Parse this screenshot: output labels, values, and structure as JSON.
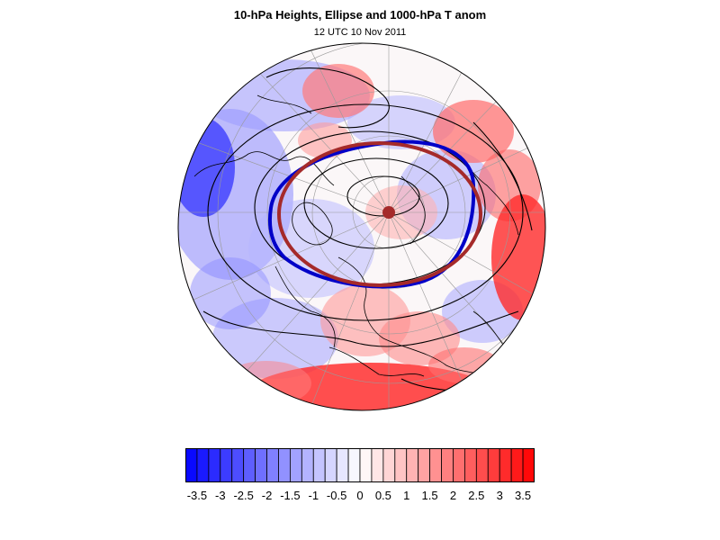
{
  "title": "10-hPa Heights, Ellipse and 1000-hPa T anom",
  "subtitle": "12 UTC 10 Nov 2011",
  "colors": {
    "cold": "#0000ff",
    "warm": "#ff0000",
    "ellipse": "#a52a2a",
    "vortex_edge": "#0000c8",
    "contour": "#000000",
    "coast": "#000000"
  },
  "colorbar": {
    "min": -3.75,
    "max": 3.75,
    "step": 0.25,
    "labels": [
      "-3.5",
      "-3",
      "-2.5",
      "-2",
      "-1.5",
      "-1",
      "-0.5",
      "0",
      "0.5",
      "1",
      "1.5",
      "2",
      "2.5",
      "3",
      "3.5"
    ]
  },
  "map": {
    "projection": "polar stereographic (north pole)",
    "field": "1000-hPa T anom",
    "contours": "10-hPa Heights",
    "overlays": [
      "ellipse",
      "ellipse centroid",
      "vortex edge contour"
    ]
  }
}
